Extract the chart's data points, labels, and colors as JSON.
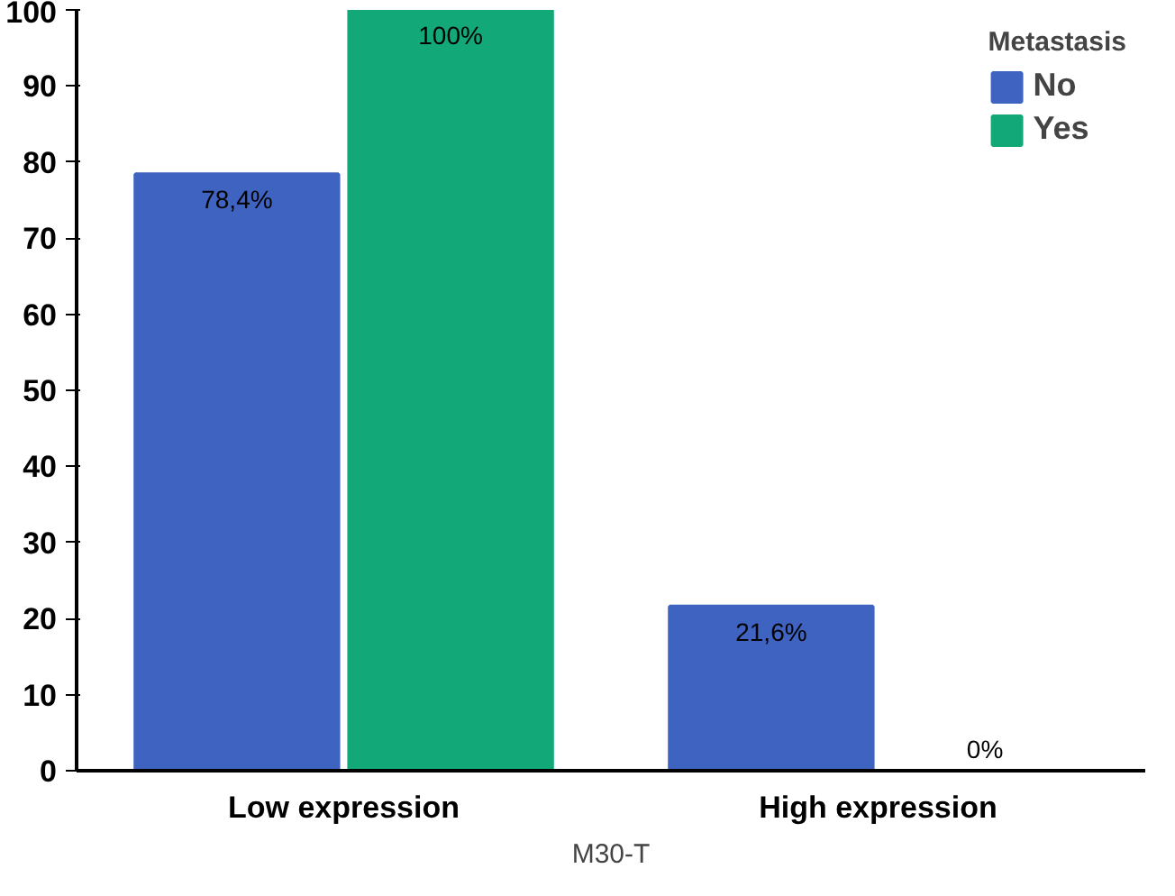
{
  "chart_data": {
    "type": "bar",
    "xlabel": "M30-T",
    "legend_title": "Metastasis",
    "legend": "top right",
    "grid": false,
    "categories": [
      "Low expression",
      "High expression"
    ],
    "series": [
      {
        "name": "No",
        "color": "#3f63c0",
        "values": [
          78.4,
          21.6
        ],
        "value_labels": [
          "78,4%",
          "21,6%"
        ]
      },
      {
        "name": "Yes",
        "color": "#12a878",
        "values": [
          100,
          0
        ],
        "value_labels": [
          "100%",
          "0%"
        ]
      }
    ],
    "ylim": [
      0,
      100
    ],
    "yticks": [
      0,
      10,
      20,
      30,
      40,
      50,
      60,
      70,
      80,
      90,
      100
    ]
  }
}
